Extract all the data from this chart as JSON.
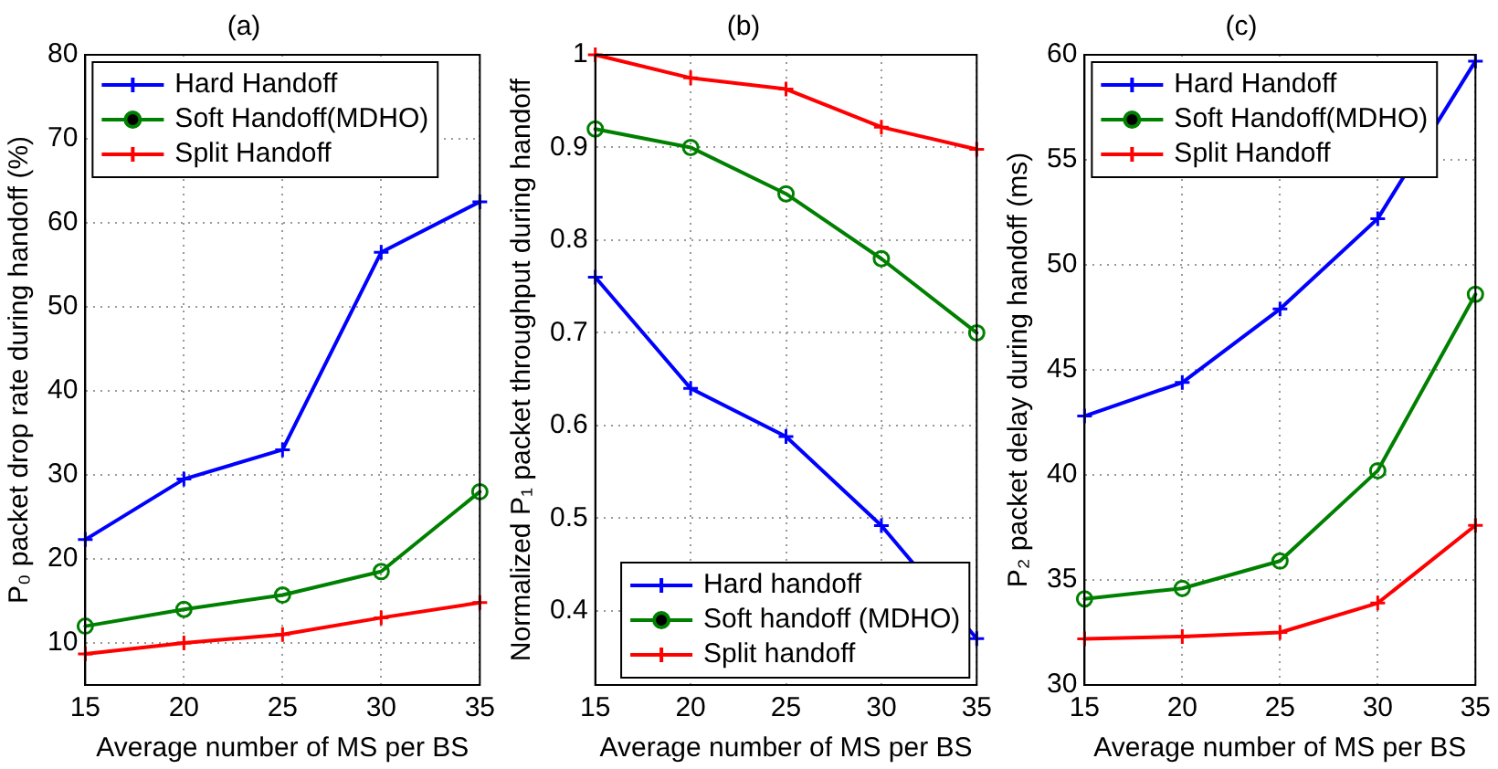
{
  "chart_data": [
    {
      "type": "line",
      "title": "(a)",
      "xlabel": "Average number of MS per BS",
      "ylabel": "P₀ packet drop rate during handoff (%)",
      "x": [
        15,
        20,
        25,
        30,
        35
      ],
      "xlim": [
        15,
        35
      ],
      "xticks": [
        15,
        20,
        25,
        30,
        35
      ],
      "ylim": [
        5,
        80
      ],
      "yticks": [
        10,
        20,
        30,
        40,
        50,
        60,
        70,
        80
      ],
      "grid": true,
      "legend": "top left",
      "series": [
        {
          "name": "Hard Handoff",
          "color": "#0000ff",
          "marker": "cross",
          "values": [
            22.3,
            29.5,
            33,
            56.5,
            62.5
          ]
        },
        {
          "name": "Soft Handoff(MDHO)",
          "color": "#008000",
          "marker": "circle",
          "values": [
            12,
            14,
            15.7,
            18.5,
            28
          ]
        },
        {
          "name": "Split Handoff",
          "color": "#ff0000",
          "marker": "cross",
          "values": [
            8.7,
            10,
            11,
            13,
            14.8
          ]
        }
      ]
    },
    {
      "type": "line",
      "title": "(b)",
      "xlabel": "Average number of MS per BS",
      "ylabel": "Normalized P₁ packet throughput during handoff",
      "x": [
        15,
        20,
        25,
        30,
        35
      ],
      "xlim": [
        15,
        35
      ],
      "xticks": [
        15,
        20,
        25,
        30,
        35
      ],
      "ylim": [
        0.32,
        1
      ],
      "yticks": [
        0.4,
        0.5,
        0.6,
        0.7,
        0.8,
        0.9,
        1
      ],
      "grid": true,
      "legend": "bottom right",
      "series": [
        {
          "name": "Hard handoff",
          "color": "#0000ff",
          "marker": "cross",
          "values": [
            0.76,
            0.64,
            0.588,
            0.492,
            0.37
          ]
        },
        {
          "name": "Soft handoff (MDHO)",
          "color": "#008000",
          "marker": "circle",
          "values": [
            0.92,
            0.9,
            0.85,
            0.78,
            0.7
          ]
        },
        {
          "name": "Split handoff",
          "color": "#ff0000",
          "marker": "cross",
          "values": [
            1,
            0.975,
            0.963,
            0.922,
            0.898
          ]
        }
      ]
    },
    {
      "type": "line",
      "title": "(c)",
      "xlabel": "Average number of MS per BS",
      "ylabel": "P₂ packet delay during handoff (ms)",
      "x": [
        15,
        20,
        25,
        30,
        35
      ],
      "xlim": [
        15,
        35
      ],
      "xticks": [
        15,
        20,
        25,
        30,
        35
      ],
      "ylim": [
        30,
        60
      ],
      "yticks": [
        30,
        35,
        40,
        45,
        50,
        55,
        60
      ],
      "grid": true,
      "legend": "top left",
      "series": [
        {
          "name": "Hard Handoff",
          "color": "#0000ff",
          "marker": "cross",
          "values": [
            42.8,
            44.4,
            47.9,
            52.2,
            59.7
          ]
        },
        {
          "name": "Soft Handoff(MDHO)",
          "color": "#008000",
          "marker": "circle",
          "values": [
            34.1,
            34.6,
            35.9,
            40.2,
            48.6
          ]
        },
        {
          "name": "Split Handoff",
          "color": "#ff0000",
          "marker": "cross",
          "values": [
            32.2,
            32.3,
            32.5,
            33.9,
            37.6
          ]
        }
      ]
    }
  ]
}
